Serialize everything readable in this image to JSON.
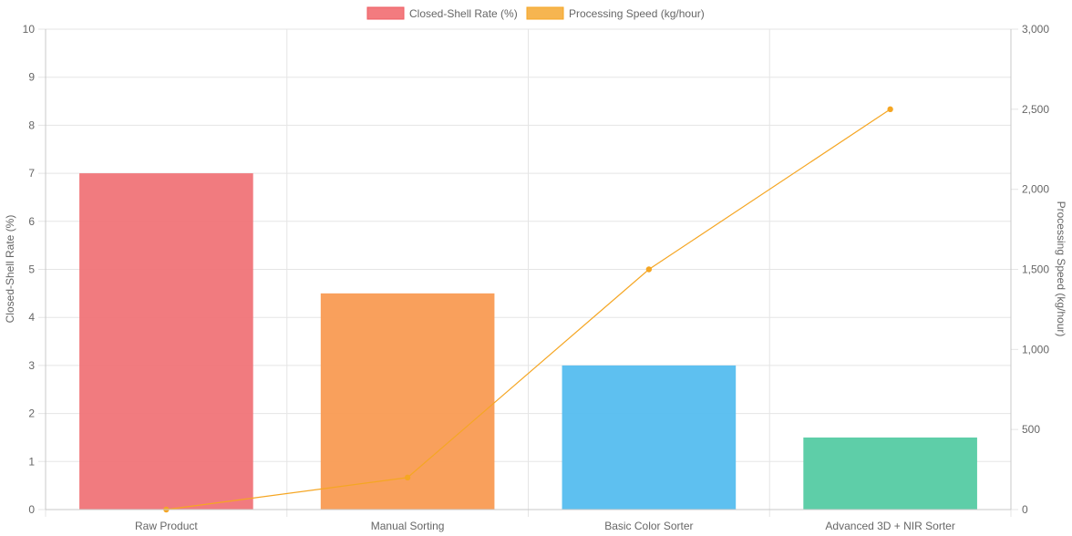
{
  "chart_data": {
    "type": "bar",
    "categories": [
      "Raw Product",
      "Manual Sorting",
      "Basic Color Sorter",
      "Advanced 3D + NIR Sorter"
    ],
    "series": [
      {
        "name": "Closed-Shell Rate (%)",
        "kind": "bar",
        "axis": "left",
        "values": [
          7,
          4.5,
          3,
          1.5
        ],
        "colors": [
          "#f07478",
          "#f99b53",
          "#55bdef",
          "#55cba3"
        ],
        "legend_fill": "#f37b7f",
        "legend_border": "#ef5b62"
      },
      {
        "name": "Processing Speed (kg/hour)",
        "kind": "line",
        "axis": "right",
        "values": [
          0,
          200,
          1500,
          2500
        ],
        "color": "#f5a623",
        "legend_fill": "#f6b550",
        "legend_border": "#f5a623"
      }
    ],
    "y_left": {
      "label": "Closed-Shell Rate (%)",
      "min": 0,
      "max": 10,
      "ticks": [
        "0",
        "1",
        "2",
        "3",
        "4",
        "5",
        "6",
        "7",
        "8",
        "9",
        "10"
      ]
    },
    "y_right": {
      "label": "Processing Speed (kg/hour)",
      "min": 0,
      "max": 3000,
      "ticks": [
        "0",
        "500",
        "1,000",
        "1,500",
        "2,000",
        "2,500",
        "3,000"
      ]
    },
    "legend_position": "top",
    "grid": true
  }
}
